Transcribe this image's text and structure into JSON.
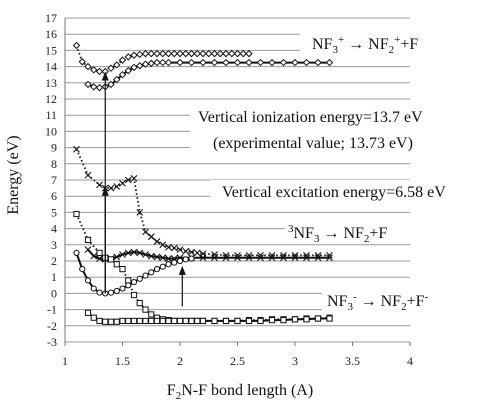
{
  "chart_data": {
    "type": "line",
    "xlabel_parts": [
      "F",
      "2",
      "N-F bond length (A)"
    ],
    "ylabel": "Energy (eV)",
    "xlim": [
      1,
      4
    ],
    "ylim": [
      -3,
      17
    ],
    "x_ticks": [
      "1",
      "1.5",
      "2",
      "2.5",
      "3",
      "3.5",
      "4"
    ],
    "y_ticks": [
      "-3",
      "-2",
      "-1",
      "0",
      "1",
      "2",
      "3",
      "4",
      "5",
      "6",
      "7",
      "8",
      "9",
      "10",
      "11",
      "12",
      "13",
      "14",
      "15",
      "16",
      "17"
    ],
    "grid": true,
    "series": [
      {
        "id": "nf3_cation_dotted",
        "style": "dotted",
        "marker": "diamond",
        "x": [
          1.1,
          1.15,
          1.2,
          1.25,
          1.3,
          1.35,
          1.4,
          1.45,
          1.5,
          1.55,
          1.6,
          1.65,
          1.7,
          1.75,
          1.8,
          1.85,
          1.9,
          1.95,
          2.0,
          2.05,
          2.1,
          2.15,
          2.2,
          2.25,
          2.3,
          2.35,
          2.4,
          2.45,
          2.5,
          2.55,
          2.6
        ],
        "y": [
          15.3,
          14.3,
          14.0,
          13.8,
          13.7,
          13.7,
          13.9,
          14.1,
          14.4,
          14.6,
          14.7,
          14.75,
          14.8,
          14.8,
          14.8,
          14.8,
          14.8,
          14.8,
          14.8,
          14.8,
          14.8,
          14.8,
          14.8,
          14.8,
          14.8,
          14.8,
          14.8,
          14.8,
          14.8,
          14.8,
          14.8
        ]
      },
      {
        "id": "nf3_cation_solid",
        "style": "solid",
        "marker": "diamond",
        "x": [
          1.2,
          1.25,
          1.3,
          1.35,
          1.4,
          1.45,
          1.5,
          1.55,
          1.6,
          1.65,
          1.7,
          1.75,
          1.8,
          1.85,
          1.9,
          2.0,
          2.1,
          2.2,
          2.3,
          2.4,
          2.5,
          2.6,
          2.7,
          2.8,
          2.9,
          3.0,
          3.1,
          3.2,
          3.3
        ],
        "y": [
          12.9,
          12.75,
          12.7,
          12.75,
          12.9,
          13.2,
          13.5,
          13.75,
          13.95,
          14.05,
          14.15,
          14.2,
          14.25,
          14.25,
          14.25,
          14.25,
          14.25,
          14.25,
          14.25,
          14.25,
          14.25,
          14.25,
          14.25,
          14.25,
          14.25,
          14.25,
          14.25,
          14.25,
          14.25
        ]
      },
      {
        "id": "triplet_dotted",
        "style": "dotted",
        "marker": "x",
        "x": [
          1.1,
          1.2,
          1.3,
          1.35,
          1.4,
          1.45,
          1.5,
          1.55,
          1.6,
          1.65,
          1.7,
          1.75,
          1.8,
          1.85,
          1.9,
          1.95,
          2.0,
          2.05,
          2.1,
          2.15,
          2.2,
          2.3,
          2.4,
          2.5,
          2.6,
          2.7,
          2.8,
          2.9,
          3.0,
          3.1,
          3.2,
          3.3
        ],
        "y": [
          8.9,
          7.3,
          6.7,
          6.5,
          6.5,
          6.6,
          6.8,
          7.0,
          7.1,
          5.0,
          3.8,
          3.5,
          3.2,
          3.0,
          2.85,
          2.8,
          2.7,
          2.6,
          2.55,
          2.5,
          2.45,
          2.4,
          2.35,
          2.35,
          2.35,
          2.35,
          2.35,
          2.35,
          2.35,
          2.35,
          2.35,
          2.35
        ]
      },
      {
        "id": "triplet_solid",
        "style": "solid",
        "marker": "x",
        "x": [
          1.2,
          1.25,
          1.3,
          1.35,
          1.4,
          1.45,
          1.5,
          1.55,
          1.6,
          1.65,
          1.7,
          1.75,
          1.8,
          1.85,
          1.9,
          1.95,
          2.0,
          2.1,
          2.2,
          2.3,
          2.4,
          2.5,
          2.6,
          2.7,
          2.8,
          2.9,
          3.0,
          3.1,
          3.2,
          3.3
        ],
        "y": [
          2.7,
          2.3,
          2.15,
          2.1,
          2.15,
          2.25,
          2.4,
          2.5,
          2.55,
          2.5,
          2.4,
          2.3,
          2.25,
          2.2,
          2.15,
          2.15,
          2.2,
          2.2,
          2.2,
          2.2,
          2.2,
          2.2,
          2.2,
          2.2,
          2.2,
          2.2,
          2.2,
          2.2,
          2.2,
          2.2
        ]
      },
      {
        "id": "neutral_dotted",
        "style": "dotted",
        "marker": "square",
        "x": [
          1.1,
          1.2,
          1.3,
          1.35,
          1.4,
          1.45,
          1.5,
          1.55,
          1.6,
          1.65,
          1.7,
          1.75,
          1.8,
          1.85,
          1.9,
          1.95,
          2.0,
          2.05,
          2.1,
          2.15,
          2.2,
          2.3,
          2.4,
          2.5,
          2.6,
          2.7,
          2.8,
          2.9,
          3.0,
          3.1,
          3.2,
          3.3
        ],
        "y": [
          4.9,
          3.3,
          2.5,
          2.2,
          2.1,
          1.8,
          1.5,
          0.8,
          -0.1,
          -0.6,
          -1.0,
          -1.3,
          -1.5,
          -1.6,
          -1.65,
          -1.7,
          -1.7,
          -1.7,
          -1.7,
          -1.7,
          -1.7,
          -1.7,
          -1.7,
          -1.7,
          -1.65,
          -1.65,
          -1.6,
          -1.6,
          -1.6,
          -1.55,
          -1.55,
          -1.5
        ]
      },
      {
        "id": "neutral_solid",
        "style": "solid",
        "marker": "circle",
        "x": [
          1.1,
          1.15,
          1.2,
          1.25,
          1.3,
          1.35,
          1.4,
          1.45,
          1.5,
          1.55,
          1.6,
          1.65,
          1.7,
          1.75,
          1.8,
          1.85,
          1.9,
          1.95,
          2.0,
          2.05,
          2.1
        ],
        "y": [
          2.5,
          1.5,
          0.8,
          0.3,
          0.05,
          0.0,
          0.05,
          0.15,
          0.3,
          0.5,
          0.7,
          0.9,
          1.1,
          1.3,
          1.5,
          1.65,
          1.8,
          1.9,
          2.0,
          2.1,
          2.15
        ]
      },
      {
        "id": "anion_solid",
        "style": "solid",
        "marker": "square",
        "x": [
          1.2,
          1.25,
          1.3,
          1.35,
          1.4,
          1.45,
          1.5,
          1.55,
          1.6,
          1.65,
          1.7,
          1.75,
          1.8,
          1.85,
          1.9,
          1.95,
          2.0,
          2.05,
          2.1,
          2.15,
          2.2,
          2.3,
          2.4,
          2.5,
          2.6,
          2.7,
          2.8,
          2.9,
          3.0,
          3.1,
          3.2,
          3.3
        ],
        "y": [
          -1.2,
          -1.5,
          -1.7,
          -1.75,
          -1.75,
          -1.75,
          -1.7,
          -1.7,
          -1.7,
          -1.7,
          -1.7,
          -1.7,
          -1.7,
          -1.7,
          -1.7,
          -1.7,
          -1.7,
          -1.7,
          -1.7,
          -1.7,
          -1.7,
          -1.7,
          -1.7,
          -1.7,
          -1.7,
          -1.7,
          -1.65,
          -1.65,
          -1.6,
          -1.6,
          -1.55,
          -1.55
        ]
      }
    ],
    "arrows": [
      {
        "id": "ionization-arrow",
        "x": 1.35,
        "y_from": 0.0,
        "y_to": 13.7
      },
      {
        "id": "excitation-arrow",
        "x": 1.35,
        "y_from": 0.0,
        "y_to": 6.58
      },
      {
        "id": "dissociation-arrow",
        "x": 2.02,
        "y_from": -0.8,
        "y_to": 1.7
      }
    ],
    "annotations": {
      "cation": {
        "pre": "NF",
        "sub": "3",
        "sup": "+",
        "mid": " → NF",
        "sub2": "2",
        "sup2": "+",
        "post": "+F"
      },
      "ionization_line1": "Vertical ionization energy=13.7 eV",
      "ionization_line2": "(experimental value; 13.73 eV)",
      "excitation": "Vertical excitation energy=6.58 eV",
      "triplet": {
        "presup": "3",
        "pre": "NF",
        "sub": "3",
        "mid": " → NF",
        "sub2": "2",
        "post": "+F"
      },
      "anion": {
        "pre": "NF",
        "sub": "3",
        "sup": "-",
        "mid": " → NF",
        "sub2": "2",
        "post": "+F",
        "sup2": "-"
      }
    }
  }
}
